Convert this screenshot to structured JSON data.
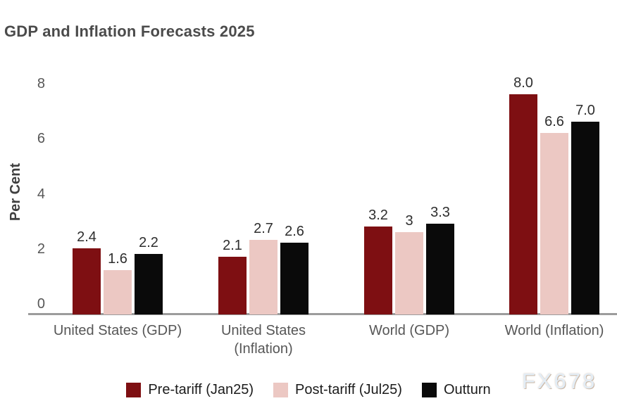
{
  "title": "GDP and Inflation Forecasts 2025",
  "watermark": "FX678",
  "chart_data": {
    "type": "bar",
    "title": "GDP and Inflation Forecasts 2025",
    "ylabel": "Per Cent",
    "xlabel": "",
    "categories": [
      "United States (GDP)",
      "United States (Inflation)",
      "World (GDP)",
      "World (Inflation)"
    ],
    "series": [
      {
        "name": "Pre-tariff (Jan25)",
        "color": "#7e0f12",
        "values": [
          2.4,
          2.1,
          3.2,
          8.0
        ],
        "labels": [
          "2.4",
          "2.1",
          "3.2",
          "8.0"
        ]
      },
      {
        "name": "Post-tariff (Jul25)",
        "color": "#ecc8c3",
        "values": [
          1.6,
          2.7,
          3.0,
          6.6
        ],
        "labels": [
          "1.6",
          "2.7",
          "3",
          "6.6"
        ]
      },
      {
        "name": "Outturn",
        "color": "#0a0a0a",
        "values": [
          2.2,
          2.6,
          3.3,
          7.0
        ],
        "labels": [
          "2.2",
          "2.6",
          "3.3",
          "7.0"
        ]
      }
    ],
    "yticks": [
      0,
      2,
      4,
      6,
      8
    ],
    "ytick_labels": [
      "0",
      "2",
      "4",
      "6",
      "8"
    ],
    "ylim": [
      0,
      8.5
    ],
    "grid": false,
    "data_labels": true,
    "legend_position": "bottom",
    "axis_line_color": "#9c9c9c"
  }
}
